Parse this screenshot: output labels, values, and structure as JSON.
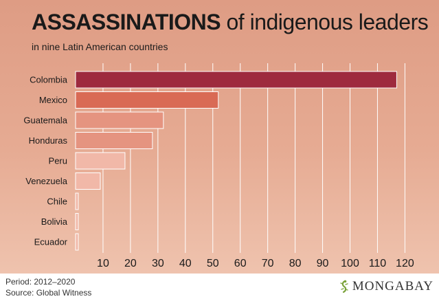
{
  "header": {
    "title_bold": "ASSASSINATIONS",
    "title_rest": "of indigenous leaders",
    "subtitle": "in nine Latin American countries"
  },
  "footer": {
    "period": "Period: 2012–2020",
    "source": "Source: Global Witness",
    "brand": "MONGABAY",
    "brand_icon": "lizard-icon"
  },
  "colors": {
    "grid": "#ffffff",
    "bar_outline": "#ffffff",
    "bars": [
      "#9e2a3e",
      "#d96a55",
      "#e59480",
      "#e59480",
      "#f1b8a8",
      "#f1b8a8",
      "#f1b8a8",
      "#f1b8a8",
      "#f1b8a8"
    ]
  },
  "chart_data": {
    "type": "bar",
    "orientation": "horizontal",
    "title": "ASSASSINATIONS of indigenous leaders",
    "subtitle": "in nine Latin American countries",
    "categories": [
      "Colombia",
      "Mexico",
      "Guatemala",
      "Honduras",
      "Peru",
      "Venezuela",
      "Chile",
      "Bolivia",
      "Ecuador"
    ],
    "values": [
      117,
      52,
      32,
      28,
      18,
      9,
      1,
      1,
      1
    ],
    "xticks": [
      10,
      20,
      30,
      40,
      50,
      60,
      70,
      80,
      90,
      100,
      110,
      120
    ],
    "xlim": [
      0,
      122
    ],
    "grid": true,
    "xlabel": "",
    "ylabel": ""
  }
}
